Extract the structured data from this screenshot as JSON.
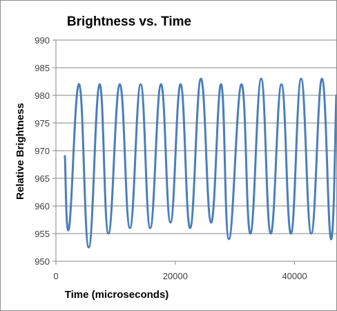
{
  "chart_data": {
    "type": "line",
    "title": "Brightness vs. Time",
    "xlabel": "Time (microseconds)",
    "ylabel": "Relative Brightness",
    "xlim": [
      0,
      47000
    ],
    "ylim": [
      950,
      990
    ],
    "x_ticks": [
      0,
      20000,
      40000
    ],
    "x_tick_labels": [
      "0",
      "20000",
      "40000"
    ],
    "y_ticks": [
      950,
      955,
      960,
      965,
      970,
      975,
      980,
      985,
      990
    ],
    "y_tick_labels": [
      "950",
      "955",
      "960",
      "965",
      "970",
      "975",
      "980",
      "985",
      "990"
    ],
    "grid": "horizontal",
    "legend": "none",
    "series": [
      {
        "color": "#4a7ebb",
        "x": [
          1500,
          2200,
          3900,
          5500,
          7300,
          8800,
          10700,
          12400,
          14200,
          15800,
          17600,
          19200,
          20900,
          22500,
          24300,
          26000,
          27700,
          29000,
          31100,
          32600,
          34400,
          36000,
          37800,
          39400,
          41100,
          42800,
          44600,
          46100,
          47000
        ],
        "y": [
          969,
          956,
          982,
          952.5,
          982,
          955,
          982,
          956,
          982,
          956,
          982,
          957,
          982,
          956,
          983,
          957,
          982,
          954,
          982,
          955,
          983,
          955,
          982,
          955,
          983,
          955,
          983,
          954,
          980
        ]
      }
    ]
  }
}
